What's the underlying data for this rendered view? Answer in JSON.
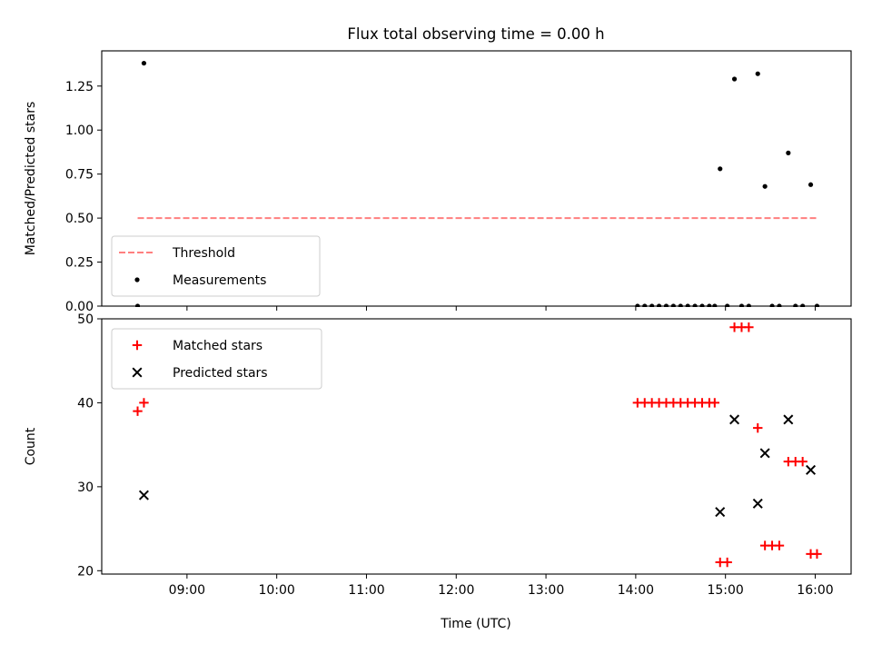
{
  "chart_data": {
    "type": "scatter",
    "title": "Flux total observing time = 0.00 h",
    "xlabel": "Time (UTC)",
    "xlim": [
      8.05,
      16.4
    ],
    "x_ticks": [
      9,
      10,
      11,
      12,
      13,
      14,
      15,
      16
    ],
    "x_tick_labels": [
      "09:00",
      "10:00",
      "11:00",
      "12:00",
      "13:00",
      "14:00",
      "15:00",
      "16:00"
    ],
    "panels": [
      {
        "ylabel": "Matched/Predicted stars",
        "ylim": [
          0,
          1.45
        ],
        "y_ticks": [
          0,
          0.25,
          0.5,
          0.75,
          1.0,
          1.25
        ],
        "y_tick_labels": [
          "0.00",
          "0.25",
          "0.50",
          "0.75",
          "1.00",
          "1.25"
        ],
        "legend": {
          "location": "lower-left",
          "entries": [
            "Threshold",
            "Measurements"
          ]
        },
        "series": [
          {
            "name": "Threshold",
            "kind": "dashed-line",
            "color": "#ff7f7f",
            "x": [
              8.45,
              16.03
            ],
            "y": [
              0.5,
              0.5
            ]
          },
          {
            "name": "Measurements",
            "kind": "dot",
            "color": "#000000",
            "x": [
              8.45,
              8.52,
              14.02,
              14.1,
              14.18,
              14.26,
              14.34,
              14.42,
              14.5,
              14.58,
              14.66,
              14.74,
              14.82,
              14.88,
              14.94,
              15.02,
              15.1,
              15.18,
              15.26,
              15.36,
              15.44,
              15.52,
              15.6,
              15.7,
              15.78,
              15.86,
              15.95,
              16.02
            ],
            "y": [
              0,
              1.38,
              0,
              0,
              0,
              0,
              0,
              0,
              0,
              0,
              0,
              0,
              0,
              0,
              0.78,
              0,
              1.29,
              0,
              0,
              1.32,
              0.68,
              0,
              0,
              0.87,
              0,
              0,
              0.69,
              0
            ]
          }
        ]
      },
      {
        "ylabel": "Count",
        "ylim": [
          19.6,
          50
        ],
        "y_ticks": [
          20,
          30,
          40,
          50
        ],
        "y_tick_labels": [
          "20",
          "30",
          "40",
          "50"
        ],
        "legend": {
          "location": "top-left",
          "entries": [
            "Matched stars",
            "Predicted stars"
          ]
        },
        "series": [
          {
            "name": "Matched stars",
            "kind": "plus",
            "color": "#ff0000",
            "x": [
              8.45,
              8.52,
              14.02,
              14.1,
              14.18,
              14.26,
              14.34,
              14.42,
              14.5,
              14.58,
              14.66,
              14.74,
              14.82,
              14.88,
              14.94,
              15.02,
              15.1,
              15.18,
              15.26,
              15.36,
              15.44,
              15.52,
              15.6,
              15.7,
              15.78,
              15.86,
              15.95,
              16.02
            ],
            "y": [
              39,
              40,
              40,
              40,
              40,
              40,
              40,
              40,
              40,
              40,
              40,
              40,
              40,
              40,
              21,
              21,
              49,
              49,
              49,
              37,
              23,
              23,
              23,
              33,
              33,
              33,
              22,
              22
            ]
          },
          {
            "name": "Predicted stars",
            "kind": "cross",
            "color": "#000000",
            "x": [
              8.52,
              14.94,
              15.1,
              15.36,
              15.44,
              15.7,
              15.95
            ],
            "y": [
              29,
              27,
              38,
              28,
              34,
              38,
              32
            ]
          }
        ]
      }
    ]
  }
}
